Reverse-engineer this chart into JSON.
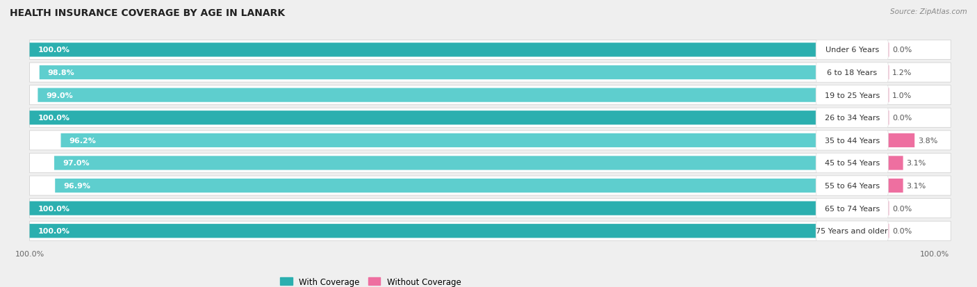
{
  "title": "HEALTH INSURANCE COVERAGE BY AGE IN LANARK",
  "source": "Source: ZipAtlas.com",
  "categories": [
    "Under 6 Years",
    "6 to 18 Years",
    "19 to 25 Years",
    "26 to 34 Years",
    "35 to 44 Years",
    "45 to 54 Years",
    "55 to 64 Years",
    "65 to 74 Years",
    "75 Years and older"
  ],
  "with_coverage": [
    100.0,
    98.8,
    99.0,
    100.0,
    96.2,
    97.0,
    96.9,
    100.0,
    100.0
  ],
  "without_coverage": [
    0.0,
    1.2,
    1.0,
    0.0,
    3.8,
    3.1,
    3.1,
    0.0,
    0.0
  ],
  "with_color_dark": "#2BAFAF",
  "with_color_light": "#5ECECE",
  "without_color_dark": "#EE6FA0",
  "without_color_light": "#F4A0C0",
  "row_bg": "#FFFFFF",
  "outer_bg": "#EFEFEF",
  "title_fontsize": 10,
  "label_fontsize": 8,
  "cat_fontsize": 8,
  "tick_fontsize": 8,
  "legend_fontsize": 8.5,
  "source_fontsize": 7.5
}
